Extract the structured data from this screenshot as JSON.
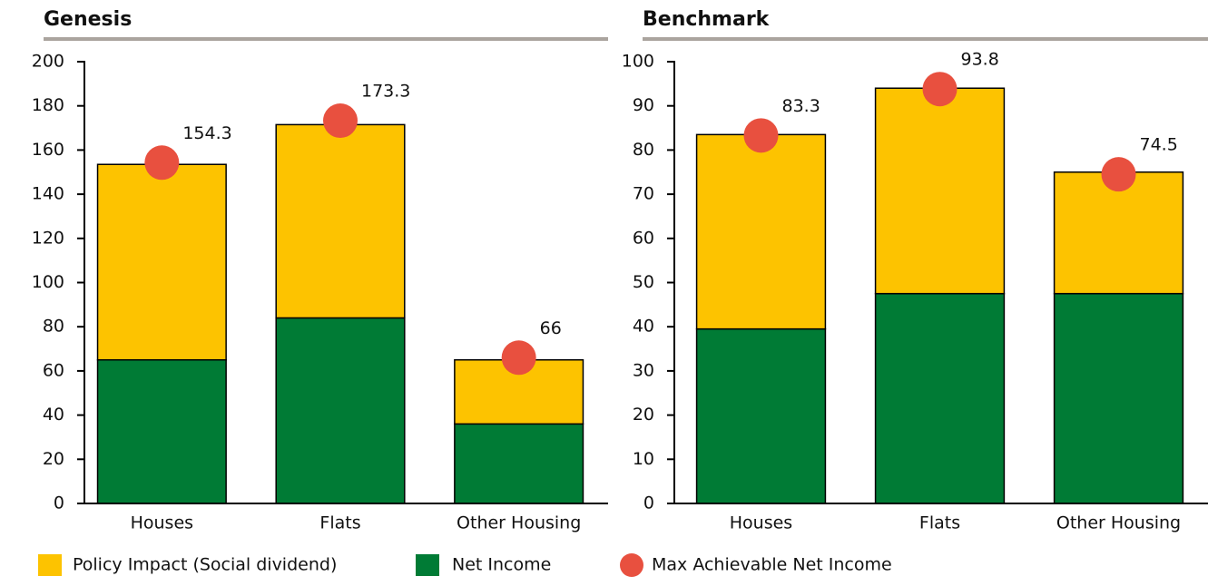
{
  "chart_data": [
    {
      "type": "bar",
      "title": "Genesis",
      "categories": [
        "Houses",
        "Flats",
        "Other Housing"
      ],
      "series": [
        {
          "name": "Net Income",
          "color": "#007b35",
          "values": [
            65,
            84,
            36
          ]
        },
        {
          "name": "Policy Impact (Social dividend)",
          "color": "#fdc300",
          "values": [
            88.5,
            87.5,
            29
          ]
        }
      ],
      "markers": {
        "name": "Max Achievable Net Income",
        "color": "#e8503f",
        "values": [
          154.3,
          173.3,
          66
        ]
      },
      "ylim": [
        0,
        200
      ],
      "yticks": [
        0,
        20,
        40,
        60,
        80,
        100,
        120,
        140,
        160,
        180,
        200
      ]
    },
    {
      "type": "bar",
      "title": "Benchmark",
      "categories": [
        "Houses",
        "Flats",
        "Other Housing"
      ],
      "series": [
        {
          "color": "#007b35",
          "values": [
            39.5,
            47.5,
            47.5
          ]
        },
        {
          "color": "#fdc300",
          "values": [
            44,
            46.5,
            27.5
          ]
        }
      ],
      "markers": {
        "color": "#e8503f",
        "values": [
          83.3,
          93.8,
          74.5
        ]
      },
      "ylim": [
        0,
        100
      ],
      "yticks": [
        0,
        10,
        20,
        30,
        40,
        50,
        60,
        70,
        80,
        90,
        100
      ]
    }
  ]
}
